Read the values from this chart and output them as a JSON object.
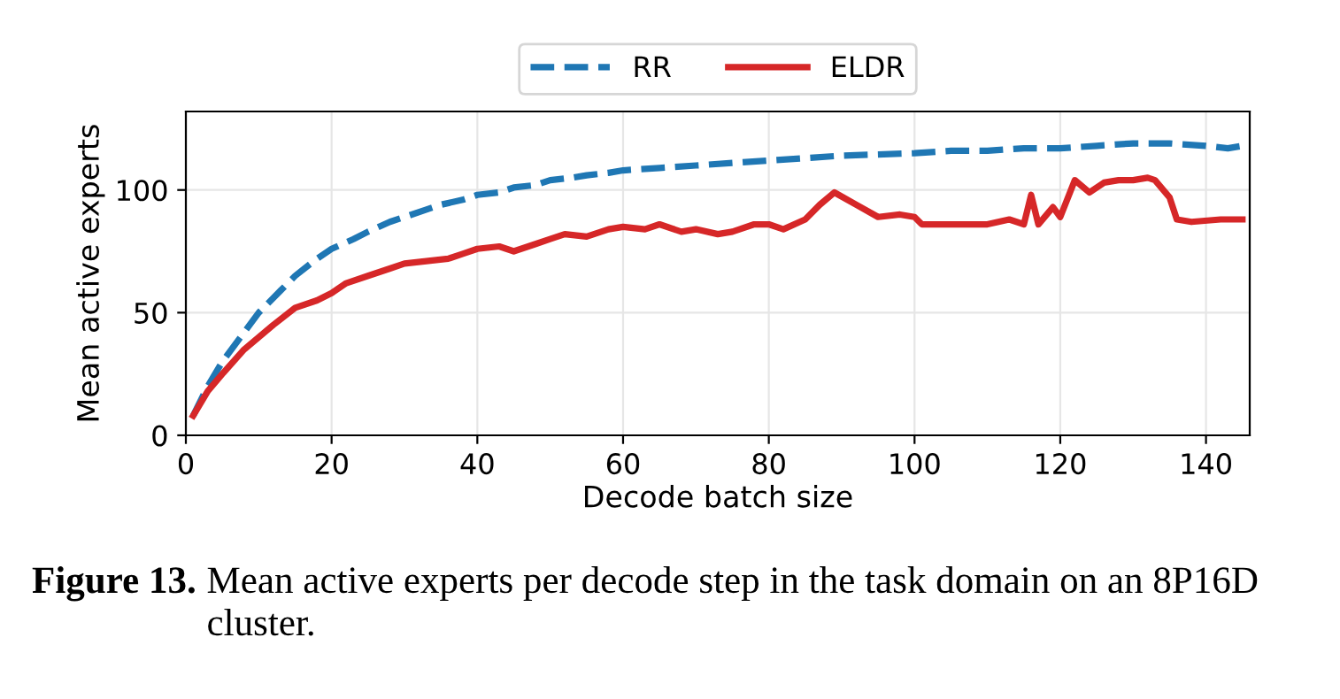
{
  "chart_data": {
    "type": "line",
    "xlabel": "Decode batch size",
    "ylabel": "Mean active experts",
    "xlim": [
      0,
      146
    ],
    "ylim": [
      0,
      132
    ],
    "xticks": [
      0,
      20,
      40,
      60,
      80,
      100,
      120,
      140
    ],
    "yticks": [
      0,
      50,
      100
    ],
    "grid": true,
    "legend": "top",
    "marker": "none",
    "annotations": [
      "Figure 13.",
      "Mean active experts per decode step in the task domain on an 8P16D cluster."
    ],
    "series": [
      {
        "name": "RR",
        "color": "#1f77b4",
        "line_style": "dashed",
        "x": [
          1,
          3,
          5,
          8,
          10,
          13,
          15,
          18,
          20,
          23,
          25,
          28,
          30,
          33,
          35,
          38,
          40,
          43,
          45,
          48,
          50,
          53,
          55,
          58,
          60,
          65,
          70,
          75,
          80,
          85,
          90,
          95,
          100,
          105,
          110,
          115,
          120,
          125,
          130,
          135,
          140,
          143,
          145
        ],
        "values": [
          8,
          20,
          30,
          42,
          50,
          59,
          65,
          72,
          76,
          80,
          83,
          87,
          89,
          92,
          94,
          96,
          98,
          99,
          101,
          102,
          104,
          105,
          106,
          107,
          108,
          109,
          110,
          111,
          112,
          113,
          114,
          114.5,
          115,
          116,
          116,
          117,
          117,
          118,
          119,
          119,
          118,
          117,
          118
        ]
      },
      {
        "name": "ELDR",
        "color": "#d62728",
        "line_style": "solid",
        "x": [
          1,
          3,
          5,
          8,
          12,
          15,
          18,
          20,
          22,
          25,
          28,
          30,
          33,
          36,
          38,
          40,
          43,
          45,
          48,
          50,
          52,
          55,
          58,
          60,
          63,
          65,
          68,
          70,
          73,
          75,
          78,
          80,
          82,
          85,
          87,
          89,
          92,
          95,
          98,
          100,
          101,
          105,
          110,
          113,
          115,
          116,
          117,
          119,
          120,
          122,
          124,
          126,
          128,
          130,
          132,
          133,
          135,
          136,
          138,
          142,
          145
        ],
        "values": [
          8,
          18,
          25,
          35,
          45,
          52,
          55,
          58,
          62,
          65,
          68,
          70,
          71,
          72,
          74,
          76,
          77,
          75,
          78,
          80,
          82,
          81,
          84,
          85,
          84,
          86,
          83,
          84,
          82,
          83,
          86,
          86,
          84,
          88,
          94,
          99,
          94,
          89,
          90,
          89,
          86,
          86,
          86,
          88,
          86,
          98,
          86,
          93,
          89,
          104,
          99,
          103,
          104,
          104,
          105,
          104,
          97,
          88,
          87,
          88,
          88
        ]
      }
    ]
  }
}
